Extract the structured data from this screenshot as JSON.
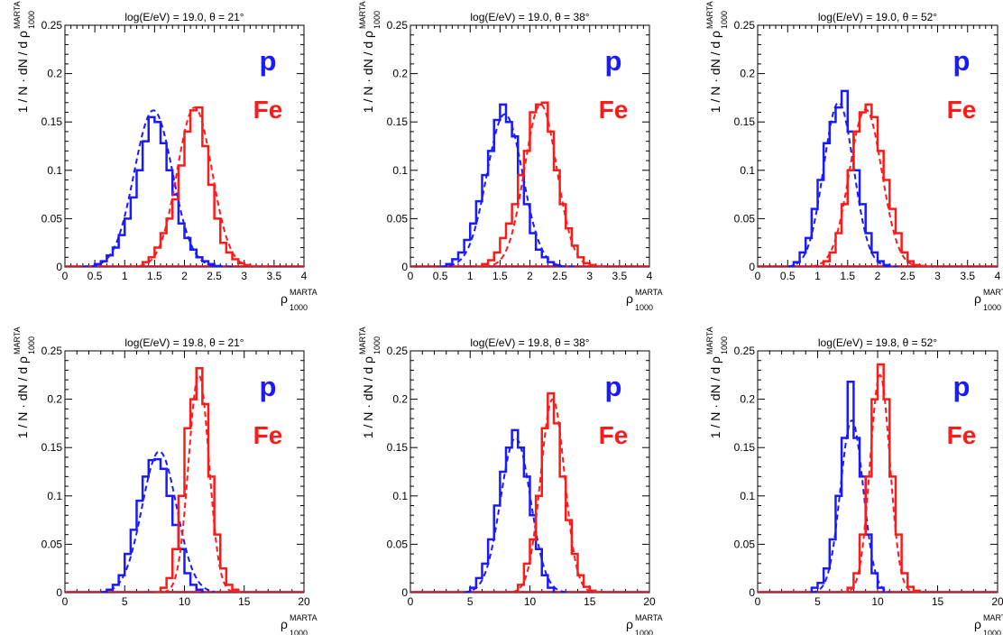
{
  "colors": {
    "proton": "#1a1aff",
    "iron": "#ff1a1a",
    "axis": "#000000"
  },
  "chart_data": [
    {
      "type": "line",
      "title": "log(E/eV) = 19.0, θ = 21°",
      "xlabel": "ρ",
      "xlabel_sup": "MARTA",
      "xlabel_sub": "1000",
      "ylabel": "1 / N · dN / d ρ",
      "ylabel_sup": "MARTA",
      "ylabel_sub": "1000",
      "xlim": [
        0,
        4
      ],
      "ylim": [
        0,
        0.25
      ],
      "xticks": [
        0,
        0.5,
        1,
        1.5,
        2,
        2.5,
        3,
        3.5,
        4
      ],
      "xtick_labels": [
        "0",
        "0.5",
        "1",
        "1.5",
        "2",
        "2.5",
        "3",
        "3.5",
        "4"
      ],
      "yticks": [
        0,
        0.05,
        0.1,
        0.15,
        0.2,
        0.25
      ],
      "ytick_labels": [
        "0",
        "0.05",
        "0.1",
        "0.15",
        "0.2",
        "0.25"
      ],
      "annotations": [
        "p",
        "Fe"
      ],
      "series": [
        {
          "label": "p",
          "color": "#1a1aff",
          "style": "histogram",
          "bin_width": 0.1,
          "x": [
            0.5,
            0.6,
            0.7,
            0.8,
            0.9,
            1.0,
            1.1,
            1.2,
            1.3,
            1.4,
            1.5,
            1.6,
            1.7,
            1.8,
            1.9,
            2.0,
            2.1,
            2.2,
            2.3,
            2.4,
            2.5
          ],
          "values": [
            0.003,
            0.006,
            0.012,
            0.02,
            0.033,
            0.05,
            0.072,
            0.1,
            0.13,
            0.155,
            0.15,
            0.128,
            0.1,
            0.075,
            0.045,
            0.03,
            0.018,
            0.01,
            0.006,
            0.003,
            0.001
          ]
        },
        {
          "label": "p fit",
          "color": "#1a1aff",
          "style": "dashed",
          "gauss": [
            0.162,
            1.48,
            0.32
          ],
          "range": [
            0.3,
            2.8
          ]
        },
        {
          "label": "Fe",
          "color": "#ff1a1a",
          "style": "histogram",
          "bin_width": 0.1,
          "x": [
            1.3,
            1.4,
            1.5,
            1.6,
            1.7,
            1.8,
            1.9,
            2.0,
            2.1,
            2.2,
            2.3,
            2.4,
            2.5,
            2.6,
            2.7,
            2.8,
            2.9,
            3.0
          ],
          "values": [
            0.005,
            0.01,
            0.02,
            0.035,
            0.05,
            0.07,
            0.105,
            0.14,
            0.162,
            0.165,
            0.125,
            0.085,
            0.05,
            0.025,
            0.015,
            0.008,
            0.004,
            0.002
          ]
        },
        {
          "label": "Fe fit",
          "color": "#ff1a1a",
          "style": "dashed",
          "gauss": [
            0.165,
            2.17,
            0.29
          ],
          "range": [
            1.1,
            3.4
          ]
        }
      ]
    },
    {
      "type": "line",
      "title": "log(E/eV) = 19.0, θ = 38°",
      "xlabel": "ρ",
      "xlabel_sup": "MARTA",
      "xlabel_sub": "1000",
      "ylabel": "1 / N · dN / d ρ",
      "ylabel_sup": "MARTA",
      "ylabel_sub": "1000",
      "xlim": [
        0,
        4
      ],
      "ylim": [
        0,
        0.25
      ],
      "xticks": [
        0,
        0.5,
        1,
        1.5,
        2,
        2.5,
        3,
        3.5,
        4
      ],
      "xtick_labels": [
        "0",
        "0.5",
        "1",
        "1.5",
        "2",
        "2.5",
        "3",
        "3.5",
        "4"
      ],
      "yticks": [
        0,
        0.05,
        0.1,
        0.15,
        0.2,
        0.25
      ],
      "ytick_labels": [
        "0",
        "0.05",
        "0.1",
        "0.15",
        "0.2",
        "0.25"
      ],
      "annotations": [
        "p",
        "Fe"
      ],
      "series": [
        {
          "label": "p",
          "color": "#1a1aff",
          "style": "histogram",
          "bin_width": 0.1,
          "x": [
            0.6,
            0.7,
            0.8,
            0.9,
            1.0,
            1.1,
            1.2,
            1.3,
            1.4,
            1.5,
            1.6,
            1.7,
            1.8,
            1.9,
            2.0,
            2.1,
            2.2,
            2.3,
            2.4
          ],
          "values": [
            0.003,
            0.008,
            0.015,
            0.028,
            0.045,
            0.068,
            0.095,
            0.12,
            0.152,
            0.168,
            0.15,
            0.135,
            0.095,
            0.065,
            0.035,
            0.018,
            0.01,
            0.005,
            0.002
          ]
        },
        {
          "label": "p fit",
          "color": "#1a1aff",
          "style": "dashed",
          "gauss": [
            0.158,
            1.58,
            0.3
          ],
          "range": [
            0.5,
            2.8
          ]
        },
        {
          "label": "Fe",
          "color": "#ff1a1a",
          "style": "histogram",
          "bin_width": 0.1,
          "x": [
            1.2,
            1.3,
            1.4,
            1.5,
            1.6,
            1.7,
            1.8,
            1.9,
            2.0,
            2.1,
            2.2,
            2.3,
            2.4,
            2.5,
            2.6,
            2.7,
            2.8,
            2.9,
            3.0
          ],
          "values": [
            0.003,
            0.007,
            0.015,
            0.03,
            0.045,
            0.065,
            0.095,
            0.12,
            0.16,
            0.168,
            0.17,
            0.14,
            0.1,
            0.065,
            0.04,
            0.022,
            0.01,
            0.004,
            0.002
          ]
        },
        {
          "label": "Fe fit",
          "color": "#ff1a1a",
          "style": "dashed",
          "gauss": [
            0.168,
            2.18,
            0.27
          ],
          "range": [
            1.1,
            3.3
          ]
        }
      ]
    },
    {
      "type": "line",
      "title": "log(E/eV) = 19.0, θ = 52°",
      "xlabel": "ρ",
      "xlabel_sup": "MARTA",
      "xlabel_sub": "1000",
      "ylabel": "1 / N · dN / d ρ",
      "ylabel_sup": "MARTA",
      "ylabel_sub": "1000",
      "xlim": [
        0,
        4
      ],
      "ylim": [
        0,
        0.25
      ],
      "xticks": [
        0,
        0.5,
        1,
        1.5,
        2,
        2.5,
        3,
        3.5,
        4
      ],
      "xtick_labels": [
        "0",
        "0.5",
        "1",
        "1.5",
        "2",
        "2.5",
        "3",
        "3.5",
        "4"
      ],
      "yticks": [
        0,
        0.05,
        0.1,
        0.15,
        0.2,
        0.25
      ],
      "ytick_labels": [
        "0",
        "0.05",
        "0.1",
        "0.15",
        "0.2",
        "0.25"
      ],
      "annotations": [
        "p",
        "Fe"
      ],
      "series": [
        {
          "label": "p",
          "color": "#1a1aff",
          "style": "histogram",
          "bin_width": 0.1,
          "x": [
            0.6,
            0.7,
            0.8,
            0.9,
            1.0,
            1.1,
            1.2,
            1.3,
            1.4,
            1.5,
            1.6,
            1.7,
            1.8,
            1.9,
            2.0,
            2.1
          ],
          "values": [
            0.005,
            0.015,
            0.03,
            0.06,
            0.09,
            0.128,
            0.15,
            0.165,
            0.182,
            0.14,
            0.1,
            0.065,
            0.035,
            0.015,
            0.006,
            0.002
          ]
        },
        {
          "label": "p fit",
          "color": "#1a1aff",
          "style": "dashed",
          "gauss": [
            0.17,
            1.35,
            0.25
          ],
          "range": [
            0.5,
            2.4
          ]
        },
        {
          "label": "Fe",
          "color": "#ff1a1a",
          "style": "histogram",
          "bin_width": 0.1,
          "x": [
            1.1,
            1.2,
            1.3,
            1.4,
            1.5,
            1.6,
            1.7,
            1.8,
            1.9,
            2.0,
            2.1,
            2.2,
            2.3,
            2.4,
            2.5,
            2.6,
            2.7
          ],
          "values": [
            0.006,
            0.015,
            0.035,
            0.065,
            0.1,
            0.14,
            0.16,
            0.168,
            0.155,
            0.12,
            0.09,
            0.06,
            0.035,
            0.015,
            0.006,
            0.002,
            0.001
          ]
        },
        {
          "label": "Fe fit",
          "color": "#ff1a1a",
          "style": "dashed",
          "gauss": [
            0.163,
            1.8,
            0.27
          ],
          "range": [
            0.9,
            2.9
          ]
        }
      ]
    },
    {
      "type": "line",
      "title": "log(E/eV) = 19.8, θ = 21°",
      "xlabel": "ρ",
      "xlabel_sup": "MARTA",
      "xlabel_sub": "1000",
      "ylabel": "1 / N · dN / d ρ",
      "ylabel_sup": "MARTA",
      "ylabel_sub": "1000",
      "xlim": [
        0,
        20
      ],
      "ylim": [
        0,
        0.25
      ],
      "xticks": [
        0,
        5,
        10,
        15,
        20
      ],
      "xtick_labels": [
        "0",
        "5",
        "10",
        "15",
        "20"
      ],
      "yticks": [
        0,
        0.05,
        0.1,
        0.15,
        0.2,
        0.25
      ],
      "ytick_labels": [
        "0",
        "0.05",
        "0.1",
        "0.15",
        "0.2",
        "0.25"
      ],
      "annotations": [
        "p",
        "Fe"
      ],
      "series": [
        {
          "label": "p",
          "color": "#1a1aff",
          "style": "histogram",
          "bin_width": 0.5,
          "x": [
            3.5,
            4.0,
            4.5,
            5.0,
            5.5,
            6.0,
            6.5,
            7.0,
            7.5,
            8.0,
            8.5,
            9.0,
            9.5,
            10.0,
            10.5,
            11.0
          ],
          "values": [
            0.003,
            0.008,
            0.018,
            0.04,
            0.065,
            0.095,
            0.12,
            0.137,
            0.138,
            0.128,
            0.1,
            0.07,
            0.045,
            0.02,
            0.008,
            0.003
          ]
        },
        {
          "label": "p fit",
          "color": "#1a1aff",
          "style": "dashed",
          "gauss": [
            0.146,
            7.9,
            1.45
          ],
          "range": [
            3.0,
            12.5
          ]
        },
        {
          "label": "Fe",
          "color": "#ff1a1a",
          "style": "histogram",
          "bin_width": 0.5,
          "x": [
            8.0,
            8.5,
            9.0,
            9.5,
            10.0,
            10.5,
            11.0,
            11.5,
            12.0,
            12.5,
            13.0,
            13.5,
            14.0
          ],
          "values": [
            0.005,
            0.015,
            0.045,
            0.1,
            0.17,
            0.2,
            0.232,
            0.195,
            0.12,
            0.06,
            0.025,
            0.008,
            0.003
          ]
        },
        {
          "label": "Fe fit",
          "color": "#ff1a1a",
          "style": "dashed",
          "gauss": [
            0.225,
            11.2,
            0.85
          ],
          "range": [
            7.5,
            15
          ]
        }
      ]
    },
    {
      "type": "line",
      "title": "log(E/eV) = 19.8, θ = 38°",
      "xlabel": "ρ",
      "xlabel_sup": "MARTA",
      "xlabel_sub": "1000",
      "ylabel": "1 / N · dN / d ρ",
      "ylabel_sup": "MARTA",
      "ylabel_sub": "1000",
      "xlim": [
        0,
        20
      ],
      "ylim": [
        0,
        0.25
      ],
      "xticks": [
        0,
        5,
        10,
        15,
        20
      ],
      "xtick_labels": [
        "0",
        "5",
        "10",
        "15",
        "20"
      ],
      "yticks": [
        0,
        0.05,
        0.1,
        0.15,
        0.2,
        0.25
      ],
      "ytick_labels": [
        "0",
        "0.05",
        "0.1",
        "0.15",
        "0.2",
        "0.25"
      ],
      "annotations": [
        "p",
        "Fe"
      ],
      "series": [
        {
          "label": "p",
          "color": "#1a1aff",
          "style": "histogram",
          "bin_width": 0.5,
          "x": [
            5.0,
            5.5,
            6.0,
            6.5,
            7.0,
            7.5,
            8.0,
            8.5,
            9.0,
            9.5,
            10.0,
            10.5,
            11.0,
            11.5
          ],
          "values": [
            0.005,
            0.015,
            0.03,
            0.055,
            0.09,
            0.125,
            0.15,
            0.168,
            0.15,
            0.12,
            0.08,
            0.045,
            0.018,
            0.005
          ]
        },
        {
          "label": "p fit",
          "color": "#1a1aff",
          "style": "dashed",
          "gauss": [
            0.16,
            8.8,
            1.25
          ],
          "range": [
            4.5,
            13
          ]
        },
        {
          "label": "Fe",
          "color": "#ff1a1a",
          "style": "histogram",
          "bin_width": 0.5,
          "x": [
            9.0,
            9.5,
            10.0,
            10.5,
            11.0,
            11.5,
            12.0,
            12.5,
            13.0,
            13.5,
            14.0,
            14.5,
            15.0
          ],
          "values": [
            0.008,
            0.03,
            0.055,
            0.1,
            0.17,
            0.206,
            0.175,
            0.12,
            0.075,
            0.04,
            0.018,
            0.006,
            0.002
          ]
        },
        {
          "label": "Fe fit",
          "color": "#ff1a1a",
          "style": "dashed",
          "gauss": [
            0.2,
            11.9,
            1.0
          ],
          "range": [
            8.5,
            16
          ]
        }
      ]
    },
    {
      "type": "line",
      "title": "log(E/eV) = 19.8, θ = 52°",
      "xlabel": "ρ",
      "xlabel_sup": "MARTA",
      "xlabel_sub": "1000",
      "ylabel": "1 / N · dN / d ρ",
      "ylabel_sup": "MARTA",
      "ylabel_sub": "1000",
      "xlim": [
        0,
        20
      ],
      "ylim": [
        0,
        0.25
      ],
      "xticks": [
        0,
        5,
        10,
        15,
        20
      ],
      "xtick_labels": [
        "0",
        "5",
        "10",
        "15",
        "20"
      ],
      "yticks": [
        0,
        0.05,
        0.1,
        0.15,
        0.2,
        0.25
      ],
      "ytick_labels": [
        "0",
        "0.05",
        "0.1",
        "0.15",
        "0.2",
        "0.25"
      ],
      "annotations": [
        "p",
        "Fe"
      ],
      "series": [
        {
          "label": "p",
          "color": "#1a1aff",
          "style": "histogram",
          "bin_width": 0.5,
          "x": [
            4.5,
            5.0,
            5.5,
            6.0,
            6.5,
            7.0,
            7.5,
            8.0,
            8.5,
            9.0,
            9.5,
            10.0
          ],
          "values": [
            0.005,
            0.01,
            0.025,
            0.055,
            0.1,
            0.16,
            0.218,
            0.16,
            0.12,
            0.06,
            0.02,
            0.005
          ]
        },
        {
          "label": "p fit",
          "color": "#1a1aff",
          "style": "dashed",
          "gauss": [
            0.178,
            7.85,
            0.95
          ],
          "range": [
            4.5,
            11
          ]
        },
        {
          "label": "Fe",
          "color": "#ff1a1a",
          "style": "histogram",
          "bin_width": 0.5,
          "x": [
            7.5,
            8.0,
            8.5,
            9.0,
            9.5,
            10.0,
            10.5,
            11.0,
            11.5,
            12.0,
            12.5,
            13.0
          ],
          "values": [
            0.005,
            0.02,
            0.06,
            0.12,
            0.2,
            0.236,
            0.2,
            0.12,
            0.06,
            0.02,
            0.006,
            0.002
          ]
        },
        {
          "label": "Fe fit",
          "color": "#ff1a1a",
          "style": "dashed",
          "gauss": [
            0.225,
            10.2,
            0.82
          ],
          "range": [
            7,
            13.5
          ]
        }
      ]
    }
  ]
}
